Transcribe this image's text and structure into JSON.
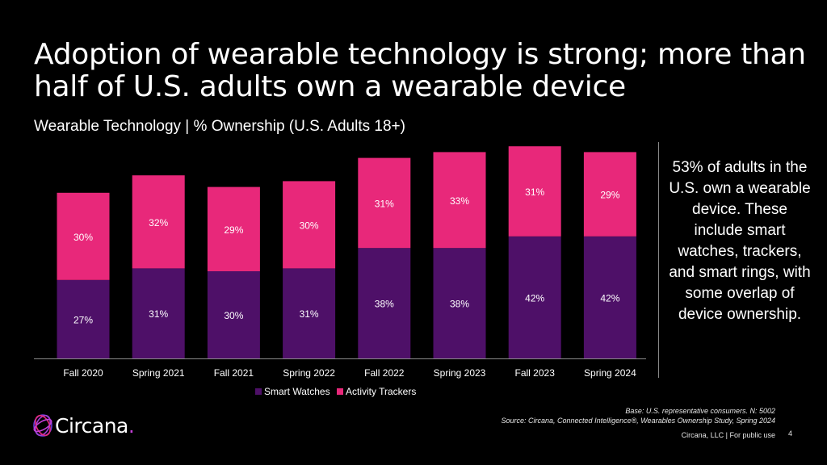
{
  "title": "Adoption of wearable technology is strong; more than half of U.S. adults own a wearable device",
  "subtitle": "Wearable Technology | % Ownership (U.S. Adults 18+)",
  "callout": "53% of adults in the U.S. own a wearable device. These include smart watches, trackers, and smart rings, with some overlap of device ownership.",
  "base_note": "Base: U.S. representative consumers. N: 5002",
  "source_note": "Source: Circana, Connected Intelligence®, Wearables Ownership Study, Spring 2024",
  "footer": "Circana, LLC |  For public use",
  "page_number": "4",
  "logo": {
    "name": "Circana",
    "dot": "."
  },
  "chart_data": {
    "type": "bar",
    "stacked": true,
    "categories": [
      "Fall 2020",
      "Spring 2021",
      "Fall 2021",
      "Spring 2022",
      "Fall 2022",
      "Spring 2023",
      "Fall 2023",
      "Spring 2024"
    ],
    "series": [
      {
        "name": "Smart Watches",
        "color": "#4e1068",
        "values": [
          27,
          31,
          30,
          31,
          38,
          38,
          42,
          42
        ]
      },
      {
        "name": "Activity Trackers",
        "color": "#e8287a",
        "values": [
          30,
          32,
          29,
          30,
          31,
          33,
          31,
          29
        ]
      }
    ],
    "value_suffix": "%",
    "ylim": [
      0,
      80
    ],
    "legend_position": "bottom",
    "grid": false,
    "xlabel": "",
    "ylabel": ""
  }
}
